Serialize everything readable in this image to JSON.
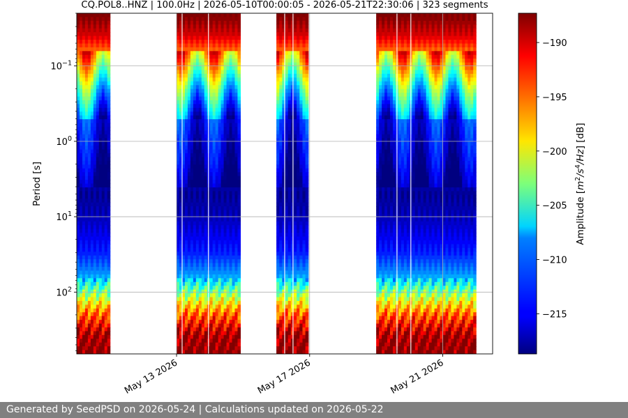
{
  "chart_data": {
    "type": "heatmap",
    "title": "CQ.POL8..HNZ | 100.0Hz | 2026-05-10T00:00:05 - 2026-05-21T22:30:06 | 323 segments",
    "xlabel": "",
    "ylabel": "Period [s]",
    "y_scale": "log",
    "y_inverted": true,
    "ylim": [
      0.02,
      660
    ],
    "yticks": [
      {
        "value": 0.1,
        "base": "10",
        "exp": "−1"
      },
      {
        "value": 1,
        "base": "10",
        "exp": "0"
      },
      {
        "value": 10,
        "base": "10",
        "exp": "1"
      },
      {
        "value": 100,
        "base": "10",
        "exp": "2"
      }
    ],
    "xlim": [
      "2026-05-10",
      "2026-05-22T12:00"
    ],
    "xticks": [
      {
        "date": "2026-05-13",
        "label": "May 13 2026"
      },
      {
        "date": "2026-05-17",
        "label": "May 17 2026"
      },
      {
        "date": "2026-05-21",
        "label": "May 21 2026"
      }
    ],
    "grid": "horizontal",
    "data_segments": [
      [
        "2026-05-10T00:00",
        "2026-05-11T00:00"
      ],
      [
        "2026-05-13T00:00",
        "2026-05-14T22:00"
      ],
      [
        "2026-05-16T00:00",
        "2026-05-16T23:00"
      ],
      [
        "2026-05-19T00:00",
        "2026-05-22T00:00"
      ]
    ],
    "gap_lines": [
      "2026-05-13T04:00",
      "2026-05-13T23:00",
      "2026-05-16T06:00",
      "2026-05-16T12:00",
      "2026-05-19T15:00",
      "2026-05-20T01:00"
    ],
    "colorbar": {
      "label_prefix": "Amplitude [",
      "label_unit": "m2/s4/Hz",
      "label_suffix": "] [dB]",
      "min": -218.7,
      "max": -187.3,
      "ticks": [
        -190,
        -195,
        -200,
        -205,
        -210,
        -215
      ],
      "tick_labels": [
        "−190",
        "−195",
        "−200",
        "−205",
        "−210",
        "−215"
      ],
      "colormap": "jet"
    },
    "period_profile_db": [
      {
        "period": 0.02,
        "db": -187
      },
      {
        "period": 0.04,
        "db": -190
      },
      {
        "period": 0.06,
        "db": -194
      },
      {
        "period": 0.1,
        "db": -199
      },
      {
        "period": 0.2,
        "db": -206
      },
      {
        "period": 0.5,
        "db": -213
      },
      {
        "period": 2,
        "db": -215.5
      },
      {
        "period": 5,
        "db": -218
      },
      {
        "period": 10,
        "db": -217
      },
      {
        "period": 30,
        "db": -214
      },
      {
        "period": 60,
        "db": -210
      },
      {
        "period": 100,
        "db": -203
      },
      {
        "period": 200,
        "db": -194
      },
      {
        "period": 400,
        "db": -188
      },
      {
        "period": 660,
        "db": -187
      }
    ]
  },
  "footer": {
    "text": "Generated by SeedPSD on 2026-05-24 | Calculations updated on 2026-05-22"
  }
}
